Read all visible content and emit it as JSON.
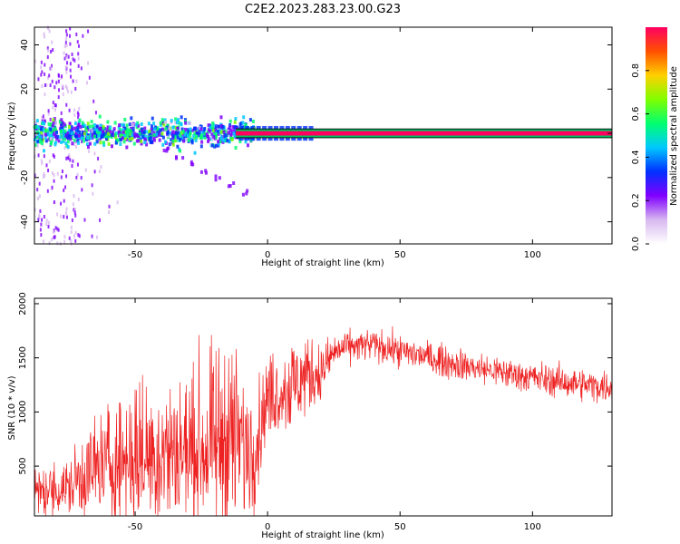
{
  "figure_title": "C2E2.2023.283.23.00.G23",
  "chart_data": [
    {
      "type": "heatmap",
      "xlabel": "Height of straight line (km)",
      "ylabel": "Frequency (Hz)",
      "xlim": [
        -88,
        130
      ],
      "ylim": [
        -50,
        48
      ],
      "x_ticks": [
        -50,
        0,
        50,
        100
      ],
      "y_ticks": [
        -40,
        -20,
        0,
        20,
        40
      ],
      "grid": false,
      "colorbar": {
        "label": "Normalized spectral amplitude",
        "range": [
          0,
          1
        ],
        "ticks": [
          0.0,
          0.2,
          0.4,
          0.6,
          0.8
        ],
        "colormap": [
          "#ffffff",
          "#d8b8f0",
          "#8000ff",
          "#0030ff",
          "#00c8ff",
          "#00ff70",
          "#80ff00",
          "#ffd000",
          "#ff5000",
          "#ff0060"
        ]
      },
      "features": {
        "tone_band": {
          "x": [
            -12,
            130
          ],
          "y": [
            -1,
            1
          ],
          "amplitude": 0.95
        },
        "dispersed_band": {
          "x": [
            -88,
            -5
          ],
          "y": [
            -5,
            5
          ],
          "amplitude": 0.35
        },
        "scatter_region": {
          "x": [
            -88,
            -70
          ],
          "y": [
            -50,
            48
          ],
          "amplitude": 0.12
        },
        "descending_trail": [
          [
            -40,
            -8
          ],
          [
            -35,
            -12
          ],
          [
            -30,
            -15
          ],
          [
            -25,
            -18
          ],
          [
            -20,
            -21
          ],
          [
            -15,
            -24
          ],
          [
            -10,
            -28
          ]
        ]
      }
    },
    {
      "type": "line",
      "xlabel": "Height of straight line (km)",
      "ylabel": "SNR (10 * v/v)",
      "xlim": [
        -88,
        130
      ],
      "ylim": [
        40,
        2050
      ],
      "x_ticks": [
        -50,
        0,
        50,
        100
      ],
      "y_ticks": [
        500,
        1000,
        1500,
        2000
      ],
      "color": "#ee2222",
      "grid": false,
      "envelope": {
        "x": [
          -88,
          -75,
          -70,
          -60,
          -50,
          -40,
          -30,
          -20,
          -15,
          -10,
          -5,
          0,
          5,
          10,
          15,
          20,
          25,
          30,
          40,
          50,
          60,
          70,
          80,
          90,
          100,
          110,
          120,
          130
        ],
        "mean": [
          250,
          300,
          420,
          520,
          600,
          620,
          640,
          700,
          820,
          700,
          650,
          1150,
          1200,
          1250,
          1350,
          1350,
          1550,
          1600,
          1620,
          1560,
          1510,
          1450,
          1400,
          1360,
          1320,
          1280,
          1250,
          1230
        ],
        "spread": [
          120,
          150,
          220,
          320,
          380,
          380,
          400,
          450,
          500,
          420,
          300,
          200,
          220,
          250,
          200,
          150,
          90,
          80,
          80,
          80,
          80,
          80,
          80,
          80,
          80,
          80,
          80,
          80
        ]
      }
    }
  ]
}
